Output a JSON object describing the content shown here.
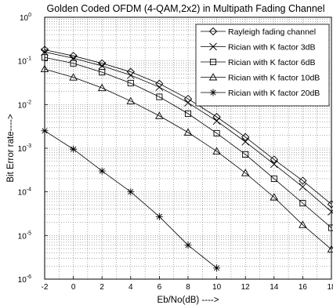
{
  "chart_data": {
    "type": "line",
    "title": "Golden Coded OFDM (4-QAM,2x2) in Multipath Fading Channel",
    "xlabel": "Eb/No(dB) ---->",
    "ylabel": "Bit Error rate---->",
    "x_ticks": [
      "-2",
      "0",
      "2",
      "4",
      "6",
      "8",
      "10",
      "12",
      "14",
      "16",
      "18"
    ],
    "y_tick_exponents": [
      "0",
      "-1",
      "-2",
      "-3",
      "-4",
      "-5",
      "-6"
    ],
    "xlim": [
      -2,
      18
    ],
    "ylim": [
      1e-06,
      1
    ],
    "yscale": "log",
    "grid": true,
    "legend_position": "top-right",
    "series": [
      {
        "name": "Rayleigh fading channel",
        "marker": "diamond",
        "x": [
          -2,
          0,
          2,
          4,
          6,
          8,
          10,
          12,
          14,
          16,
          18
        ],
        "y": [
          0.18,
          0.13,
          0.088,
          0.056,
          0.03,
          0.0135,
          0.0052,
          0.0018,
          0.00055,
          0.00018,
          5.2e-05
        ]
      },
      {
        "name": "Rician with K factor 3dB",
        "marker": "x",
        "x": [
          -2,
          0,
          2,
          4,
          6,
          8,
          10,
          12,
          14,
          16,
          18
        ],
        "y": [
          0.16,
          0.115,
          0.077,
          0.047,
          0.025,
          0.011,
          0.0042,
          0.0014,
          0.00043,
          0.00013,
          3.5e-05
        ]
      },
      {
        "name": "Rician with K factor 6dB",
        "marker": "square",
        "x": [
          -2,
          0,
          2,
          4,
          6,
          8,
          10,
          12,
          14,
          16,
          18
        ],
        "y": [
          0.12,
          0.088,
          0.055,
          0.031,
          0.015,
          0.0062,
          0.0022,
          0.00072,
          0.0002,
          5.5e-05,
          1.5e-05
        ]
      },
      {
        "name": "Rician with K factor 10dB",
        "marker": "triangle",
        "x": [
          -2,
          0,
          2,
          4,
          6,
          8,
          10,
          12,
          14,
          16,
          18
        ],
        "y": [
          0.065,
          0.042,
          0.024,
          0.012,
          0.0055,
          0.0023,
          0.00085,
          0.00027,
          7.5e-05,
          1.75e-05,
          4.8e-06
        ]
      },
      {
        "name": "Rician with K factor 20dB",
        "marker": "star",
        "x": [
          -2,
          0,
          2,
          4,
          6,
          8,
          10
        ],
        "y": [
          0.0025,
          0.00095,
          0.0003,
          0.0001,
          2.7e-05,
          6e-06,
          1.8e-06
        ]
      }
    ]
  }
}
